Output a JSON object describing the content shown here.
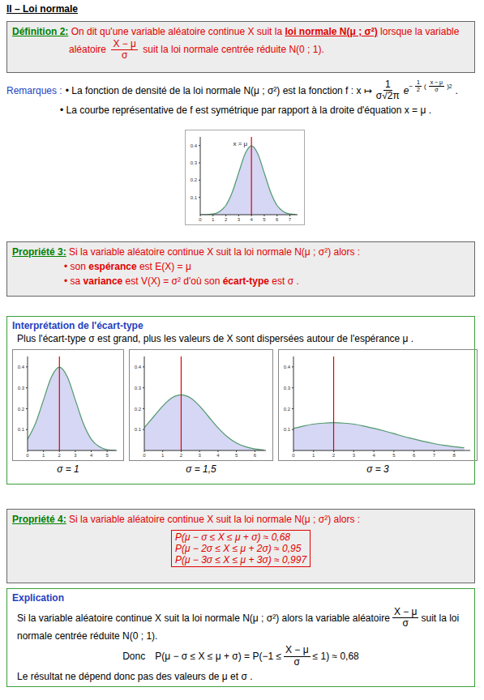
{
  "title": "II – Loi normale",
  "definition": {
    "label": "Définition 2:",
    "text1": "On dit qu'une variable aléatoire continue X suit la",
    "law": "loi normale N(μ ; σ²)",
    "text2": "lorsque la variable",
    "text3": "aléatoire",
    "fraction": {
      "num": "X − μ",
      "den": "σ"
    },
    "text4": "suit la loi normale centrée réduite N(0 ; 1)."
  },
  "remarques": {
    "label": "Remarques :",
    "item1": "• La fonction de densité de la loi normale N(μ ; σ²) est la fonction f : x ↦",
    "coef": {
      "num": "1",
      "den": "σ√2π"
    },
    "e": "e",
    "exponent": {
      "sign": "−",
      "half": {
        "num": "1",
        "den": "2"
      },
      "frac": {
        "num": "x − μ",
        "den": "σ"
      },
      "power": "2"
    },
    "end": ".",
    "item2": "• La courbe représentative de f est symétrique par rapport à la droite d'équation x = μ ."
  },
  "chart_data": [
    {
      "type": "area",
      "x": [
        0,
        0.5,
        1,
        1.5,
        2,
        2.5,
        3,
        3.5,
        4,
        4.5,
        5,
        5.5,
        6,
        6.5,
        7,
        7.5
      ],
      "values": [
        0.0001,
        0.001,
        0.004,
        0.018,
        0.054,
        0.13,
        0.242,
        0.352,
        0.399,
        0.352,
        0.242,
        0.13,
        0.054,
        0.018,
        0.004,
        0.001
      ],
      "xlim": [
        0,
        7.6
      ],
      "ylim": [
        0,
        0.45
      ],
      "xticks": [
        0,
        1,
        2,
        3,
        4,
        5,
        6,
        7
      ],
      "yticks": [
        0.1,
        0.2,
        0.3,
        0.4
      ],
      "color": "#4f9a6b",
      "mean": 4,
      "mean_label": "x = μ"
    },
    {
      "type": "area",
      "x": [
        0,
        0.5,
        1,
        1.5,
        2,
        2.5,
        3,
        3.5,
        4,
        4.5,
        5,
        5.5
      ],
      "values": [
        0.054,
        0.13,
        0.242,
        0.352,
        0.399,
        0.352,
        0.242,
        0.13,
        0.054,
        0.018,
        0.004,
        0.001
      ],
      "xlim": [
        0,
        5.6
      ],
      "ylim": [
        0,
        0.45
      ],
      "xticks": [
        0,
        1,
        2,
        3,
        4,
        5
      ],
      "yticks": [
        0.1,
        0.2,
        0.3,
        0.4
      ],
      "color": "#4f9a6b",
      "mean": 2,
      "caption": "σ = 1"
    },
    {
      "type": "area",
      "x": [
        0,
        0.5,
        1,
        1.5,
        2,
        2.5,
        3,
        3.5,
        4,
        4.5,
        5,
        5.5,
        6,
        6.5
      ],
      "values": [
        0.109,
        0.161,
        0.213,
        0.252,
        0.266,
        0.252,
        0.213,
        0.161,
        0.109,
        0.066,
        0.036,
        0.018,
        0.0076,
        0.003
      ],
      "xlim": [
        0,
        6.6
      ],
      "ylim": [
        0,
        0.45
      ],
      "xticks": [
        0,
        1,
        2,
        3,
        4,
        5,
        6
      ],
      "yticks": [
        0.1,
        0.2,
        0.3,
        0.4
      ],
      "color": "#4f9a6b",
      "mean": 2,
      "caption": "σ = 1,5"
    },
    {
      "type": "area",
      "x": [
        0,
        0.5,
        1,
        1.5,
        2,
        2.5,
        3,
        3.5,
        4,
        4.5,
        5,
        5.5,
        6,
        6.5,
        7,
        7.5,
        8,
        8.5
      ],
      "values": [
        0.106,
        0.117,
        0.126,
        0.131,
        0.133,
        0.131,
        0.126,
        0.117,
        0.106,
        0.094,
        0.081,
        0.067,
        0.055,
        0.043,
        0.033,
        0.025,
        0.018,
        0.013
      ],
      "xlim": [
        0,
        8.8
      ],
      "ylim": [
        0,
        0.45
      ],
      "xticks": [
        0,
        1,
        2,
        3,
        4,
        5,
        6,
        7,
        8
      ],
      "yticks": [
        0.1,
        0.2,
        0.3,
        0.4
      ],
      "color": "#4f9a6b",
      "mean": 2,
      "caption": "σ = 3"
    }
  ],
  "propriete3": {
    "label": "Propriété 3:",
    "intro": "Si la variable aléatoire continue X suit la loi normale N(μ ; σ²) alors :",
    "item1": {
      "pre": "• son ",
      "bold": "espérance",
      "post": " est E(X) = μ"
    },
    "item2": {
      "pre": "• sa ",
      "bold": "variance",
      "post": " est V(X) = σ²  d'où son ",
      "bold2": "écart-type",
      "post2": " est σ ."
    }
  },
  "interpretation": {
    "title": "Interprétation de l'écart-type",
    "text": "Plus l'écart-type σ  est grand, plus les valeurs de X  sont dispersées autour de l'espérance μ ."
  },
  "propriete4": {
    "label": "Propriété 4:",
    "intro": "Si la variable aléatoire continue X suit la loi normale N(μ ; σ²) alors :",
    "formulas": [
      "P(μ − σ ≤ X ≤ μ + σ) ≈ 0,68",
      "P(μ − 2σ ≤ X ≤ μ + 2σ) ≈ 0,95",
      "P(μ − 3σ ≤ X ≤ μ + 3σ) ≈ 0,997"
    ]
  },
  "explication": {
    "title": "Explication",
    "text1": "Si la variable aléatoire continue X suit la loi normale N(μ ; σ²) alors la variable aléatoire",
    "fraction": {
      "num": "X − μ",
      "den": "σ"
    },
    "text2": "suit la loi",
    "text3": "normale centrée réduite N(0 ; 1).",
    "donc": "Donc",
    "eq_left": "P(μ − σ ≤ X ≤ μ + σ) = P(−1 ≤",
    "eq_right": "≤ 1) ≈ 0,68",
    "conclusion": "Le résultat ne dépend donc pas des valeurs de μ  et σ ."
  }
}
